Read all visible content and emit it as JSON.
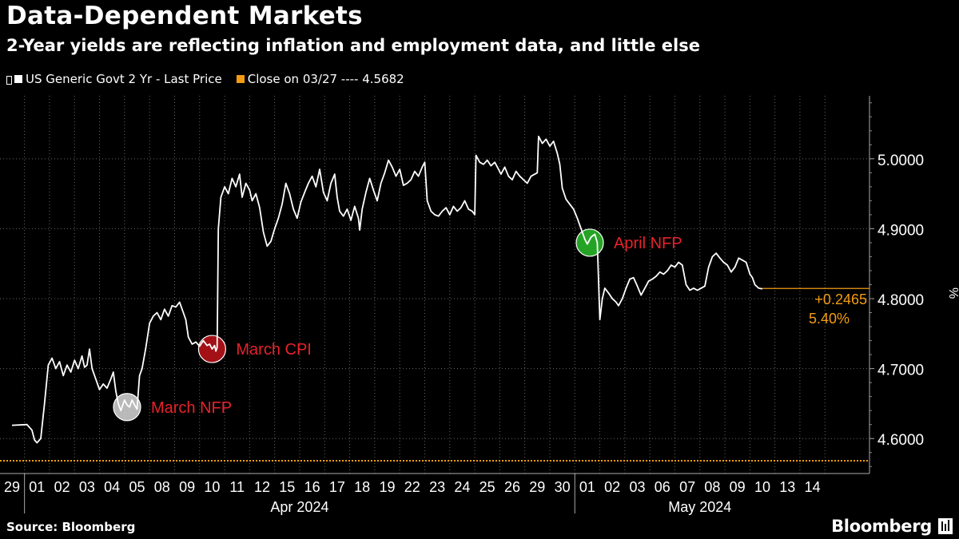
{
  "header": {
    "title": "Data-Dependent Markets",
    "subtitle": "2-Year yields are reflecting inflation and employment data, and little else"
  },
  "legend": {
    "series_label": "US Generic Govt 2 Yr - Last Price",
    "close_label": "Close on 03/27 ---- 4.5682"
  },
  "footer": {
    "source": "Source: Bloomberg",
    "brand": "Bloomberg"
  },
  "colors": {
    "line": "#ffffff",
    "close": "#f39c12",
    "grid": "#666666",
    "nfp_march": "#d9d9d9",
    "cpi": "#c0141b",
    "nfp_april": "#2bbf2b",
    "annotation_text": "#e8222a"
  },
  "chart_data": {
    "type": "line",
    "series": [
      {
        "name": "US Generic Govt 2 Yr - Last Price",
        "points": [
          [
            0,
            4.619
          ],
          [
            0.6,
            4.62
          ],
          [
            0.8,
            4.612
          ],
          [
            0.9,
            4.598
          ],
          [
            1.0,
            4.594
          ],
          [
            1.15,
            4.6
          ],
          [
            1.3,
            4.65
          ],
          [
            1.45,
            4.705
          ],
          [
            1.6,
            4.715
          ],
          [
            1.75,
            4.7
          ],
          [
            1.9,
            4.71
          ],
          [
            2.05,
            4.69
          ],
          [
            2.2,
            4.705
          ],
          [
            2.35,
            4.695
          ],
          [
            2.5,
            4.712
          ],
          [
            2.65,
            4.7
          ],
          [
            2.8,
            4.718
          ],
          [
            2.9,
            4.702
          ],
          [
            3.0,
            4.705
          ],
          [
            3.1,
            4.728
          ],
          [
            3.2,
            4.7
          ],
          [
            3.35,
            4.685
          ],
          [
            3.5,
            4.67
          ],
          [
            3.65,
            4.678
          ],
          [
            3.8,
            4.672
          ],
          [
            3.95,
            4.685
          ],
          [
            4.05,
            4.695
          ],
          [
            4.15,
            4.668
          ],
          [
            4.25,
            4.65
          ],
          [
            4.35,
            4.64
          ],
          [
            4.5,
            4.655
          ],
          [
            4.6,
            4.648
          ],
          [
            4.7,
            4.645
          ],
          [
            4.8,
            4.655
          ],
          [
            4.9,
            4.648
          ],
          [
            5.0,
            4.642
          ],
          [
            5.1,
            4.69
          ],
          [
            5.2,
            4.7
          ],
          [
            5.35,
            4.73
          ],
          [
            5.5,
            4.765
          ],
          [
            5.65,
            4.775
          ],
          [
            5.8,
            4.78
          ],
          [
            5.95,
            4.77
          ],
          [
            6.1,
            4.785
          ],
          [
            6.25,
            4.775
          ],
          [
            6.4,
            4.79
          ],
          [
            6.55,
            4.788
          ],
          [
            6.7,
            4.795
          ],
          [
            6.85,
            4.78
          ],
          [
            6.95,
            4.77
          ],
          [
            7.05,
            4.745
          ],
          [
            7.2,
            4.735
          ],
          [
            7.35,
            4.738
          ],
          [
            7.5,
            4.732
          ],
          [
            7.65,
            4.74
          ],
          [
            7.8,
            4.733
          ],
          [
            7.9,
            4.735
          ],
          [
            8.0,
            4.728
          ],
          [
            8.1,
            4.733
          ],
          [
            8.15,
            4.725
          ],
          [
            8.2,
            4.73
          ],
          [
            8.25,
            4.9
          ],
          [
            8.35,
            4.945
          ],
          [
            8.5,
            4.96
          ],
          [
            8.65,
            4.95
          ],
          [
            8.8,
            4.972
          ],
          [
            8.95,
            4.96
          ],
          [
            9.1,
            4.978
          ],
          [
            9.2,
            4.945
          ],
          [
            9.35,
            4.965
          ],
          [
            9.5,
            4.955
          ],
          [
            9.6,
            4.94
          ],
          [
            9.75,
            4.95
          ],
          [
            9.9,
            4.93
          ],
          [
            10.05,
            4.895
          ],
          [
            10.2,
            4.875
          ],
          [
            10.35,
            4.882
          ],
          [
            10.5,
            4.9
          ],
          [
            10.65,
            4.915
          ],
          [
            10.8,
            4.935
          ],
          [
            10.95,
            4.965
          ],
          [
            11.1,
            4.95
          ],
          [
            11.25,
            4.928
          ],
          [
            11.4,
            4.915
          ],
          [
            11.55,
            4.938
          ],
          [
            11.7,
            4.952
          ],
          [
            11.85,
            4.965
          ],
          [
            12.0,
            4.975
          ],
          [
            12.15,
            4.96
          ],
          [
            12.3,
            4.985
          ],
          [
            12.45,
            4.952
          ],
          [
            12.6,
            4.94
          ],
          [
            12.75,
            4.965
          ],
          [
            12.9,
            4.978
          ],
          [
            13.0,
            4.945
          ],
          [
            13.1,
            4.925
          ],
          [
            13.25,
            4.918
          ],
          [
            13.4,
            4.928
          ],
          [
            13.55,
            4.912
          ],
          [
            13.7,
            4.932
          ],
          [
            13.85,
            4.915
          ],
          [
            13.9,
            4.898
          ],
          [
            14.0,
            4.928
          ],
          [
            14.15,
            4.952
          ],
          [
            14.3,
            4.972
          ],
          [
            14.45,
            4.955
          ],
          [
            14.6,
            4.94
          ],
          [
            14.75,
            4.965
          ],
          [
            14.9,
            4.98
          ],
          [
            15.05,
            4.998
          ],
          [
            15.2,
            4.988
          ],
          [
            15.35,
            4.975
          ],
          [
            15.5,
            4.985
          ],
          [
            15.65,
            4.962
          ],
          [
            15.8,
            4.965
          ],
          [
            15.95,
            4.97
          ],
          [
            16.1,
            4.982
          ],
          [
            16.25,
            4.975
          ],
          [
            16.4,
            4.988
          ],
          [
            16.5,
            4.995
          ],
          [
            16.6,
            4.94
          ],
          [
            16.75,
            4.925
          ],
          [
            16.9,
            4.92
          ],
          [
            17.05,
            4.918
          ],
          [
            17.2,
            4.925
          ],
          [
            17.35,
            4.93
          ],
          [
            17.5,
            4.92
          ],
          [
            17.65,
            4.932
          ],
          [
            17.8,
            4.925
          ],
          [
            17.95,
            4.93
          ],
          [
            18.1,
            4.94
          ],
          [
            18.25,
            4.928
          ],
          [
            18.4,
            4.925
          ],
          [
            18.5,
            4.92
          ],
          [
            18.55,
            5.005
          ],
          [
            18.7,
            4.995
          ],
          [
            18.85,
            4.992
          ],
          [
            19.0,
            4.998
          ],
          [
            19.15,
            4.99
          ],
          [
            19.3,
            4.995
          ],
          [
            19.45,
            4.985
          ],
          [
            19.55,
            4.978
          ],
          [
            19.7,
            4.988
          ],
          [
            19.85,
            4.975
          ],
          [
            20.0,
            4.97
          ],
          [
            20.15,
            4.982
          ],
          [
            20.3,
            4.975
          ],
          [
            20.45,
            4.97
          ],
          [
            20.6,
            4.965
          ],
          [
            20.75,
            4.975
          ],
          [
            20.9,
            4.978
          ],
          [
            21.0,
            4.98
          ],
          [
            21.05,
            5.032
          ],
          [
            21.2,
            5.022
          ],
          [
            21.35,
            5.028
          ],
          [
            21.5,
            5.018
          ],
          [
            21.65,
            5.025
          ],
          [
            21.8,
            5.008
          ],
          [
            21.9,
            4.992
          ],
          [
            22.0,
            4.958
          ],
          [
            22.15,
            4.942
          ],
          [
            22.3,
            4.935
          ],
          [
            22.45,
            4.928
          ],
          [
            22.6,
            4.915
          ],
          [
            22.75,
            4.9
          ],
          [
            22.9,
            4.885
          ],
          [
            23.0,
            4.878
          ],
          [
            23.15,
            4.888
          ],
          [
            23.3,
            4.892
          ],
          [
            23.4,
            4.88
          ],
          [
            23.5,
            4.77
          ],
          [
            23.6,
            4.8
          ],
          [
            23.7,
            4.815
          ],
          [
            23.85,
            4.808
          ],
          [
            24.0,
            4.8
          ],
          [
            24.15,
            4.795
          ],
          [
            24.25,
            4.79
          ],
          [
            24.4,
            4.8
          ],
          [
            24.55,
            4.815
          ],
          [
            24.7,
            4.828
          ],
          [
            24.85,
            4.83
          ],
          [
            25.0,
            4.818
          ],
          [
            25.15,
            4.805
          ],
          [
            25.3,
            4.815
          ],
          [
            25.45,
            4.825
          ],
          [
            25.6,
            4.828
          ],
          [
            25.75,
            4.832
          ],
          [
            25.9,
            4.838
          ],
          [
            26.05,
            4.835
          ],
          [
            26.2,
            4.84
          ],
          [
            26.35,
            4.848
          ],
          [
            26.5,
            4.845
          ],
          [
            26.65,
            4.852
          ],
          [
            26.8,
            4.848
          ],
          [
            26.95,
            4.82
          ],
          [
            27.1,
            4.812
          ],
          [
            27.25,
            4.815
          ],
          [
            27.4,
            4.812
          ],
          [
            27.55,
            4.815
          ],
          [
            27.7,
            4.818
          ],
          [
            27.85,
            4.845
          ],
          [
            28.0,
            4.86
          ],
          [
            28.15,
            4.865
          ],
          [
            28.3,
            4.858
          ],
          [
            28.45,
            4.852
          ],
          [
            28.6,
            4.848
          ],
          [
            28.75,
            4.838
          ],
          [
            28.9,
            4.845
          ],
          [
            29.05,
            4.858
          ],
          [
            29.2,
            4.855
          ],
          [
            29.35,
            4.852
          ],
          [
            29.5,
            4.835
          ],
          [
            29.6,
            4.83
          ],
          [
            29.7,
            4.82
          ],
          [
            29.85,
            4.815
          ],
          [
            30.0,
            4.814
          ]
        ]
      }
    ],
    "reference_line": {
      "label": "Close on 03/27",
      "value": 4.5682
    },
    "last_value": 4.8146,
    "last_change_label": "+0.2465",
    "last_pct_label": "5.40%",
    "y_ticks": [
      4.6,
      4.7,
      4.8,
      4.9,
      5.0
    ],
    "y_tick_labels": [
      "4.6000",
      "4.7000",
      "4.8000",
      "4.9000",
      "5.0000"
    ],
    "y_unit_label": "%",
    "ylim": [
      4.55,
      5.09
    ],
    "x_tick_labels": [
      "29",
      "01",
      "02",
      "03",
      "04",
      "05",
      "08",
      "09",
      "10",
      "11",
      "12",
      "15",
      "16",
      "17",
      "18",
      "19",
      "22",
      "23",
      "24",
      "25",
      "26",
      "29",
      "30",
      "01",
      "02",
      "03",
      "06",
      "07",
      "08",
      "09",
      "10",
      "13",
      "14"
    ],
    "x_groups": [
      {
        "label": "Apr 2024",
        "start": 1,
        "end": 22
      },
      {
        "label": "May 2024",
        "start": 23,
        "end": 32
      }
    ],
    "annotations": [
      {
        "label": "March NFP",
        "x": 4.6,
        "y": 4.645,
        "color_key": "nfp_march"
      },
      {
        "label": "March CPI",
        "x": 8.0,
        "y": 4.728,
        "color_key": "cpi"
      },
      {
        "label": "April NFP",
        "x": 23.1,
        "y": 4.88,
        "color_key": "nfp_april"
      }
    ],
    "grid": true
  }
}
